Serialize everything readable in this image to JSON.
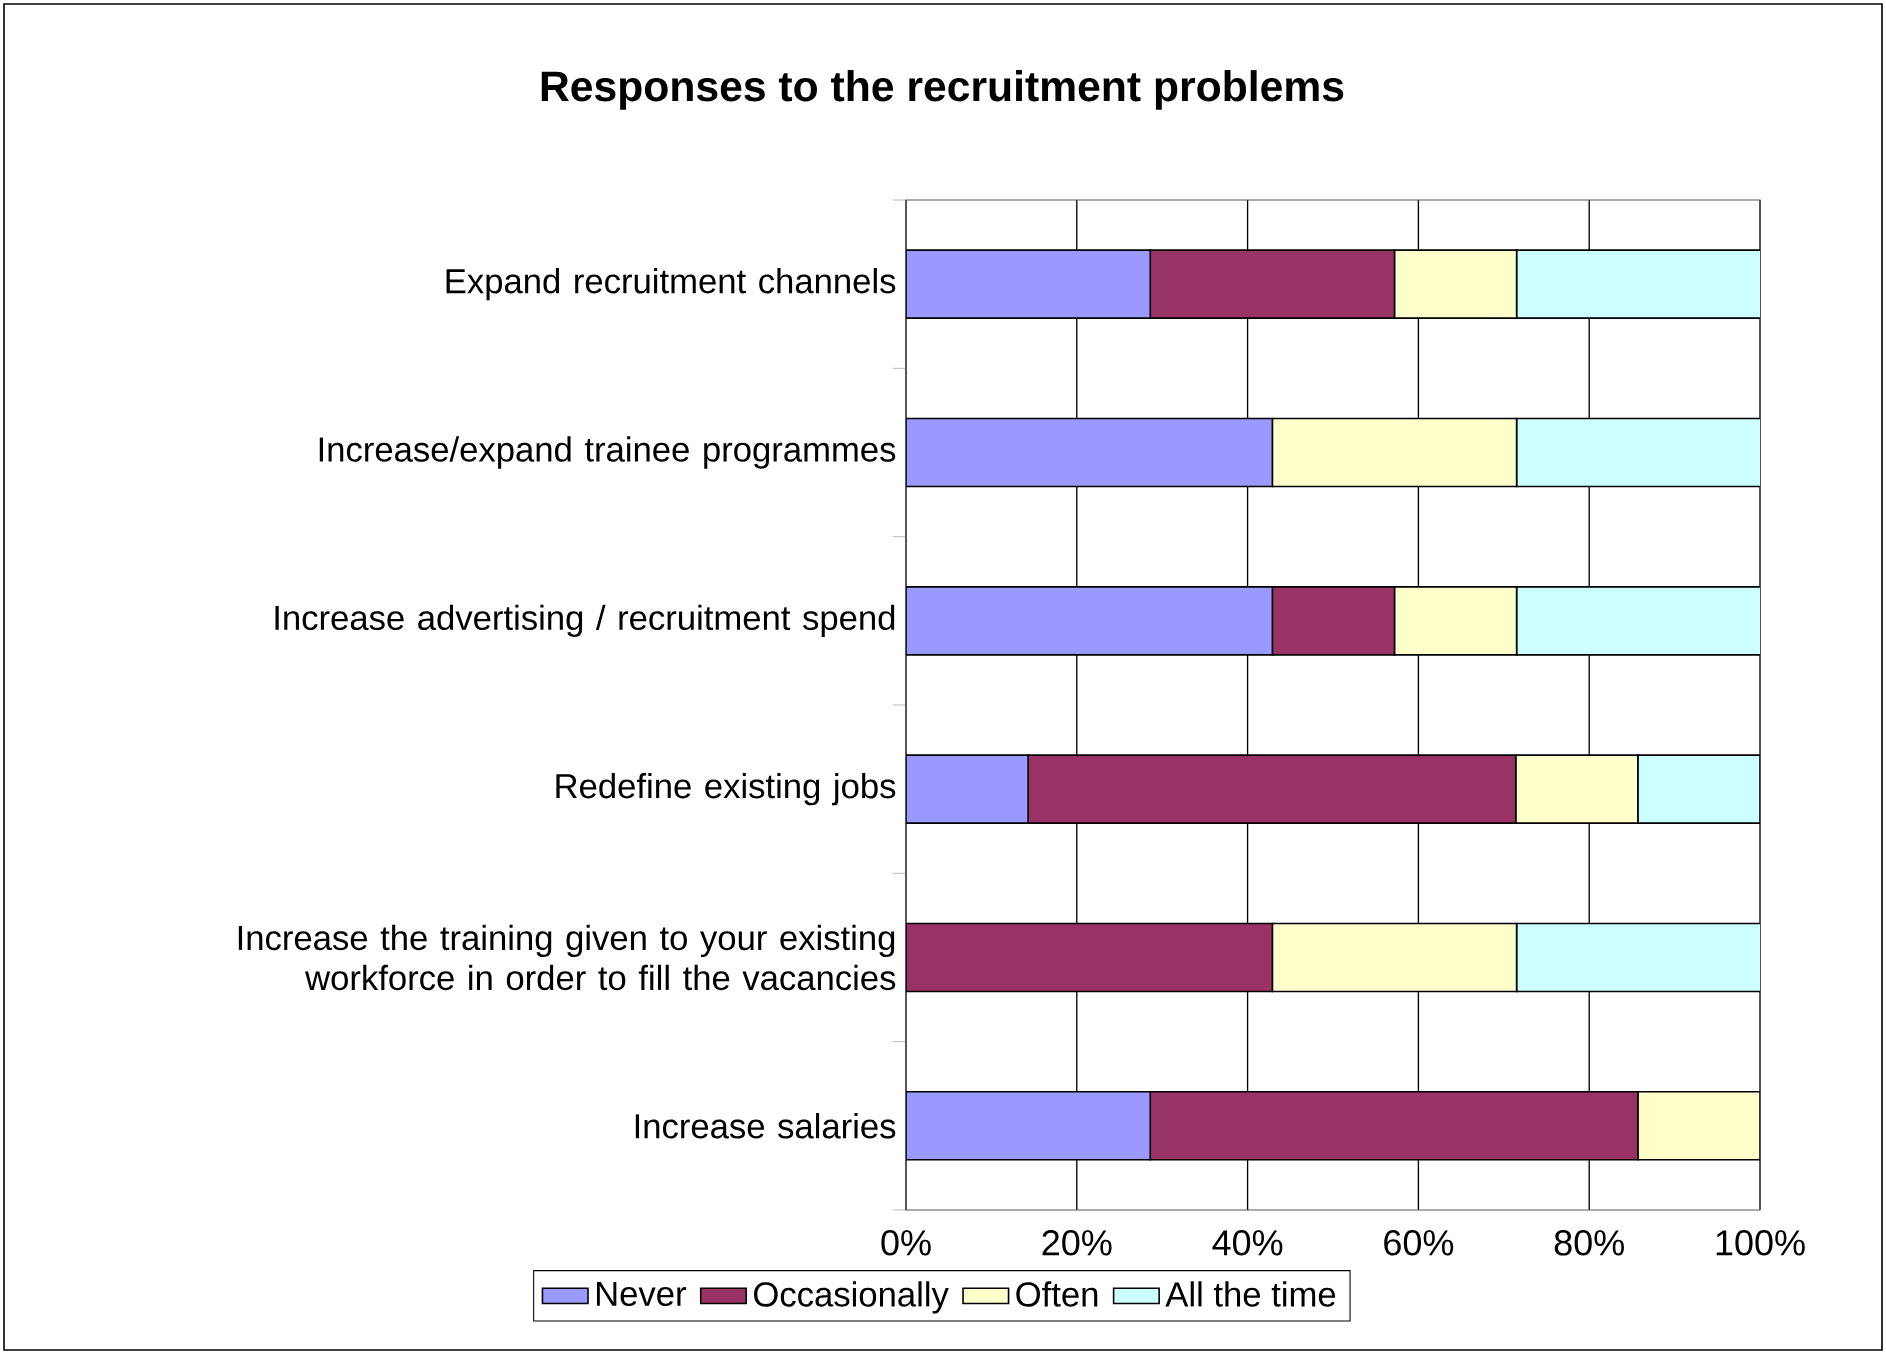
{
  "chart_data": {
    "type": "bar",
    "orientation": "horizontal",
    "stacked": true,
    "title": "Responses to the recruitment problems",
    "categories": [
      "Expand recruitment channels",
      "Increase/expand trainee programmes",
      "Increase advertising / recruitment spend",
      "Redefine existing jobs",
      "Increase the training given to your existing workforce in order to fill the vacancies",
      "Increase salaries"
    ],
    "series": [
      {
        "name": "Never",
        "color": "#9999ff",
        "values": [
          28.6,
          42.9,
          42.9,
          14.3,
          0,
          28.6
        ]
      },
      {
        "name": "Occasionally",
        "color": "#993366",
        "values": [
          28.6,
          0,
          14.3,
          57.1,
          42.9,
          57.1
        ]
      },
      {
        "name": "Often",
        "color": "#ffffcc",
        "values": [
          14.3,
          28.6,
          14.3,
          14.3,
          28.6,
          14.3
        ]
      },
      {
        "name": "All the time",
        "color": "#ccffff",
        "values": [
          28.6,
          28.6,
          28.6,
          14.3,
          28.6,
          0
        ]
      }
    ],
    "xlim": [
      0,
      100
    ],
    "xticks": [
      {
        "value": 0,
        "label": "0%"
      },
      {
        "value": 20,
        "label": "20%"
      },
      {
        "value": 40,
        "label": "40%"
      },
      {
        "value": 60,
        "label": "60%"
      },
      {
        "value": 80,
        "label": "80%"
      },
      {
        "value": 100,
        "label": "100%"
      }
    ],
    "grid": "x",
    "legend": "bottom"
  }
}
